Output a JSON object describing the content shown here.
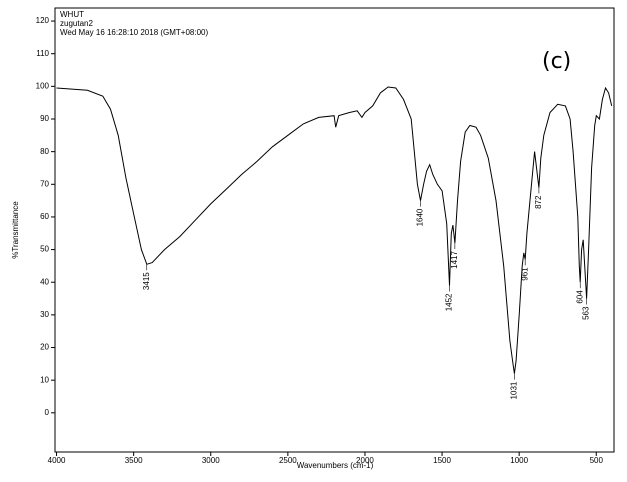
{
  "chart_data": {
    "type": "line",
    "header": [
      "WHUT",
      "zugutan2",
      "Wed May 16 16:28:10 2018 (GMT+08:00)"
    ],
    "panel_label": "(c)",
    "x_label": "Wavenumbers (cm-1)",
    "y_label": "%Transmittance",
    "xlim": [
      4010,
      385
    ],
    "ylim": [
      -12,
      124
    ],
    "xticks": [
      4000,
      3500,
      3000,
      2500,
      2000,
      1500,
      1000,
      500
    ],
    "yticks": [
      0,
      10,
      20,
      30,
      40,
      50,
      60,
      70,
      80,
      90,
      100,
      110,
      120
    ],
    "peak_labels": [
      3415,
      1640,
      1452,
      1417,
      1031,
      961,
      872,
      604,
      563
    ],
    "series": [
      {
        "name": "spectrum",
        "color": "#000000",
        "x": [
          4000,
          3800,
          3700,
          3650,
          3600,
          3550,
          3500,
          3450,
          3415,
          3380,
          3300,
          3200,
          3100,
          3000,
          2900,
          2800,
          2700,
          2600,
          2500,
          2400,
          2300,
          2200,
          2190,
          2170,
          2100,
          2050,
          2020,
          2000,
          1950,
          1900,
          1850,
          1800,
          1750,
          1700,
          1680,
          1660,
          1640,
          1620,
          1600,
          1580,
          1560,
          1530,
          1500,
          1470,
          1452,
          1440,
          1430,
          1417,
          1400,
          1380,
          1350,
          1320,
          1280,
          1250,
          1200,
          1150,
          1100,
          1060,
          1040,
          1031,
          1020,
          1000,
          980,
          970,
          961,
          950,
          920,
          900,
          880,
          872,
          860,
          840,
          800,
          750,
          700,
          670,
          650,
          620,
          610,
          604,
          595,
          585,
          575,
          563,
          550,
          530,
          510,
          500,
          480,
          460,
          440,
          420,
          400
        ],
        "values": [
          99.5,
          98.8,
          97,
          93,
          85,
          72,
          61,
          50,
          45.5,
          46,
          50,
          54,
          59,
          64,
          68.5,
          73,
          77,
          81.5,
          85,
          88.5,
          90.5,
          91,
          87.5,
          91,
          92,
          92.5,
          90.5,
          92,
          94,
          98,
          99.8,
          99.5,
          96,
          90,
          80,
          70,
          65,
          70,
          74,
          76,
          73,
          70,
          68,
          58,
          39,
          55,
          57.5,
          52,
          65,
          77,
          86,
          88,
          87.5,
          85,
          78,
          65,
          45,
          22,
          15,
          12,
          16,
          30,
          45,
          49,
          47,
          55,
          70,
          80,
          72,
          69,
          78,
          85,
          92,
          94.5,
          94,
          90,
          80,
          60,
          45,
          40,
          50,
          53,
          45,
          35,
          50,
          75,
          88,
          91,
          90,
          96,
          99.5,
          98,
          94
        ]
      }
    ]
  }
}
